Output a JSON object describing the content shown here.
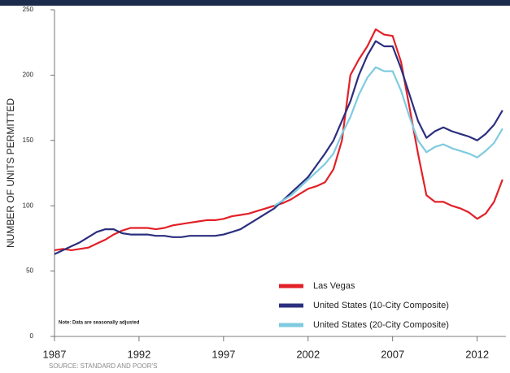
{
  "chart_data": {
    "type": "line",
    "ylabel": "NUMBER OF UNITS PERMITTED",
    "note": "Note: Data are seasonally adjusted",
    "source": "SOURCE: STANDARD AND POOR'S",
    "x": [
      1987,
      1987.5,
      1988,
      1988.5,
      1989,
      1989.5,
      1990,
      1990.5,
      1991,
      1991.5,
      1992,
      1992.5,
      1993,
      1993.5,
      1994,
      1994.5,
      1995,
      1995.5,
      1996,
      1996.5,
      1997,
      1997.5,
      1998,
      1998.5,
      1999,
      1999.5,
      2000,
      2000.5,
      2001,
      2001.5,
      2002,
      2002.5,
      2003,
      2003.5,
      2004,
      2004.5,
      2005,
      2005.5,
      2006,
      2006.5,
      2007,
      2007.5,
      2008,
      2008.5,
      2009,
      2009.5,
      2010,
      2010.5,
      2011,
      2011.5,
      2012,
      2012.5,
      2013,
      2013.5
    ],
    "series": [
      {
        "name": "Las Vegas",
        "color": "#e32027",
        "values": [
          66,
          67,
          66,
          67,
          68,
          71,
          74,
          78,
          81,
          83,
          83,
          83,
          82,
          83,
          85,
          86,
          87,
          88,
          89,
          89,
          90,
          92,
          93,
          94,
          96,
          98,
          100,
          102,
          105,
          109,
          113,
          115,
          118,
          128,
          150,
          200,
          212,
          222,
          235,
          231,
          230,
          210,
          175,
          140,
          108,
          103,
          103,
          100,
          98,
          95,
          90,
          94,
          103,
          120
        ]
      },
      {
        "name": "United States (10-City Composite)",
        "color": "#2b2f7e",
        "values": [
          63,
          66,
          69,
          72,
          76,
          80,
          82,
          82,
          79,
          78,
          78,
          78,
          77,
          77,
          76,
          76,
          77,
          77,
          77,
          77,
          78,
          80,
          82,
          86,
          90,
          94,
          98,
          104,
          110,
          116,
          122,
          131,
          140,
          150,
          165,
          180,
          200,
          215,
          226,
          222,
          222,
          205,
          185,
          165,
          152,
          157,
          160,
          157,
          155,
          153,
          150,
          155,
          162,
          173
        ]
      },
      {
        "name": "United States (20-City Composite)",
        "color": "#7ecbe0",
        "values": [
          null,
          null,
          null,
          null,
          null,
          null,
          null,
          null,
          null,
          null,
          null,
          null,
          null,
          null,
          null,
          null,
          null,
          null,
          null,
          null,
          null,
          null,
          null,
          null,
          null,
          null,
          100,
          104,
          108,
          114,
          120,
          126,
          132,
          140,
          155,
          168,
          185,
          198,
          206,
          203,
          203,
          188,
          168,
          150,
          141,
          145,
          147,
          144,
          142,
          140,
          137,
          142,
          148,
          159
        ]
      }
    ],
    "xlim": [
      1987,
      2013.7
    ],
    "xticks": [
      1987,
      1992,
      1997,
      2002,
      2007,
      2012
    ],
    "ylim": [
      0,
      250
    ],
    "yticks": [
      0,
      50,
      100,
      150,
      200,
      250
    ]
  }
}
